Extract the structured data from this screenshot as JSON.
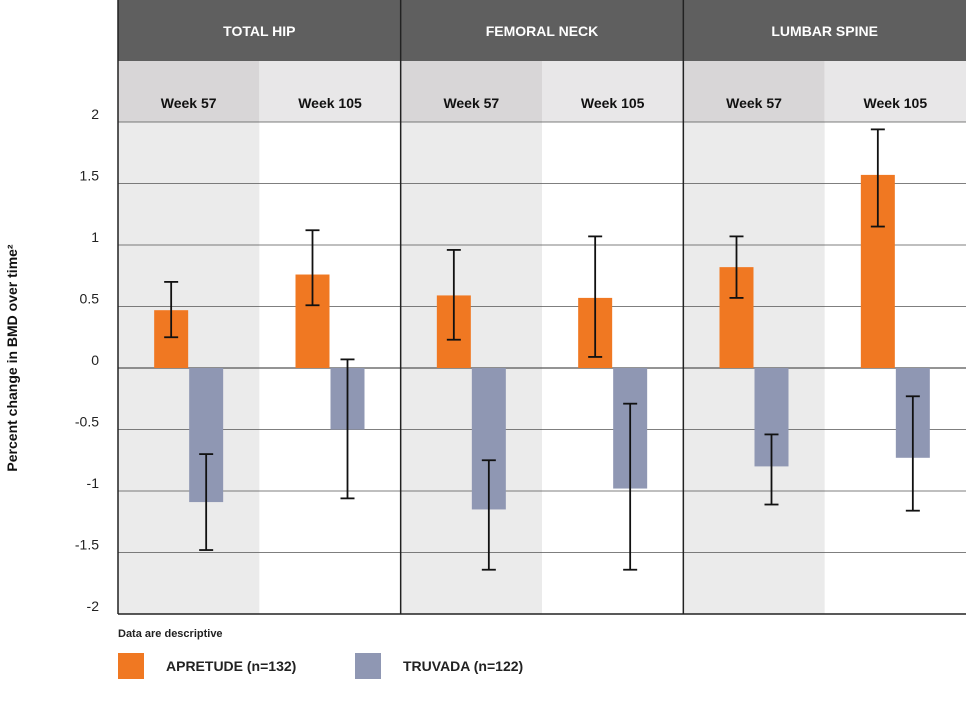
{
  "chart_data": {
    "type": "bar",
    "ylabel": "Percent change in BMD over time²",
    "ylim": [
      -2,
      2
    ],
    "yticks": [
      2,
      1.5,
      1,
      0.5,
      0,
      -0.5,
      -1,
      -1.5,
      -2
    ],
    "ytick_labels": [
      "2",
      "1.5",
      "1",
      "0.5",
      "0",
      "-0.5",
      "-1",
      "-1.5",
      "-2"
    ],
    "groups": [
      "TOTAL HIP",
      "FEMORAL NECK",
      "LUMBAR SPINE"
    ],
    "categories": [
      "Week 57",
      "Week 105",
      "Week 57",
      "Week 105",
      "Week 57",
      "Week 105"
    ],
    "series": [
      {
        "name": "APRETUDE (n=132)",
        "color": "#f07822",
        "values": [
          0.47,
          0.76,
          0.59,
          0.57,
          0.82,
          1.57
        ],
        "err_low": [
          0.25,
          0.51,
          0.23,
          0.09,
          0.57,
          1.15
        ],
        "err_high": [
          0.7,
          1.12,
          0.96,
          1.07,
          1.07,
          1.94
        ]
      },
      {
        "name": "TRUVADA (n=122)",
        "color": "#8f97b3",
        "values": [
          -1.09,
          -0.5,
          -1.15,
          -0.98,
          -0.8,
          -0.73
        ],
        "err_low": [
          -1.48,
          -1.06,
          -1.64,
          -1.64,
          -1.11,
          -1.16
        ],
        "err_high": [
          -0.7,
          0.07,
          -0.75,
          -0.29,
          -0.54,
          -0.23
        ]
      }
    ],
    "legend": "bottom-left",
    "grid": true
  },
  "footnote": "Data are descriptive",
  "colors": {
    "header_bg": "#5f5f5f",
    "subheader_shade": "#d8d6d7",
    "subheader_light": "#e8e7e8",
    "column_shade": "#ebebeb"
  }
}
